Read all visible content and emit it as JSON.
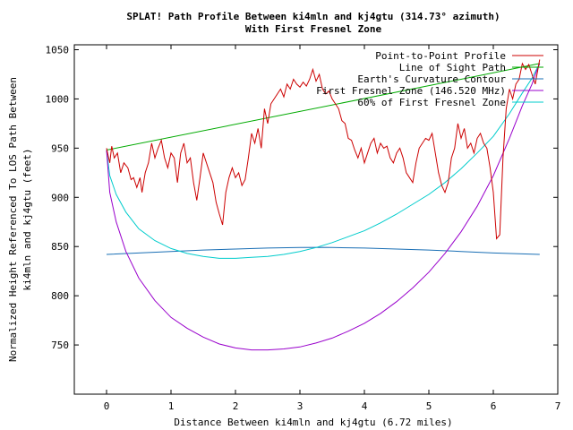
{
  "chart_data": {
    "type": "line",
    "title": "SPLAT! Path Profile Between ki4mln and kj4gtu (314.73° azimuth)",
    "subtitle": "With First Fresnel Zone",
    "xlabel": "Distance Between ki4mln and kj4gtu (6.72 miles)",
    "ylabel": [
      "Normalized Height Referenced To LOS Path Between",
      "ki4mln and kj4gtu (feet)"
    ],
    "xlim": [
      -0.5,
      7
    ],
    "ylim": [
      700,
      1055
    ],
    "xticks": [
      0,
      1,
      2,
      3,
      4,
      5,
      6,
      7
    ],
    "yticks": [
      750,
      800,
      850,
      900,
      950,
      1000,
      1050
    ],
    "grid": false,
    "legend_position": "top-right",
    "series": [
      {
        "name": "Point-to-Point Profile",
        "color": "#cc0000",
        "x": [
          0,
          0.05,
          0.08,
          0.12,
          0.17,
          0.22,
          0.27,
          0.33,
          0.38,
          0.42,
          0.47,
          0.52,
          0.55,
          0.6,
          0.65,
          0.7,
          0.75,
          0.8,
          0.85,
          0.9,
          0.95,
          1.0,
          1.05,
          1.1,
          1.15,
          1.2,
          1.25,
          1.3,
          1.35,
          1.4,
          1.45,
          1.5,
          1.55,
          1.6,
          1.65,
          1.7,
          1.75,
          1.8,
          1.85,
          1.9,
          1.95,
          2.0,
          2.05,
          2.1,
          2.15,
          2.2,
          2.25,
          2.3,
          2.35,
          2.4,
          2.45,
          2.5,
          2.55,
          2.6,
          2.65,
          2.7,
          2.75,
          2.8,
          2.85,
          2.9,
          2.95,
          3.0,
          3.05,
          3.1,
          3.15,
          3.2,
          3.25,
          3.3,
          3.35,
          3.4,
          3.45,
          3.5,
          3.55,
          3.6,
          3.65,
          3.7,
          3.75,
          3.8,
          3.85,
          3.9,
          3.95,
          4.0,
          4.05,
          4.1,
          4.15,
          4.2,
          4.25,
          4.3,
          4.35,
          4.4,
          4.45,
          4.5,
          4.55,
          4.6,
          4.65,
          4.7,
          4.75,
          4.8,
          4.85,
          4.9,
          4.95,
          5.0,
          5.05,
          5.1,
          5.15,
          5.2,
          5.25,
          5.3,
          5.35,
          5.4,
          5.45,
          5.5,
          5.55,
          5.6,
          5.65,
          5.7,
          5.75,
          5.8,
          5.85,
          5.9,
          5.95,
          6.0,
          6.05,
          6.1,
          6.15,
          6.2,
          6.25,
          6.3,
          6.35,
          6.4,
          6.45,
          6.5,
          6.55,
          6.6,
          6.65,
          6.72
        ],
        "values": [
          950,
          935,
          952,
          940,
          945,
          925,
          935,
          930,
          918,
          920,
          910,
          920,
          905,
          925,
          935,
          955,
          940,
          950,
          958,
          940,
          930,
          945,
          940,
          915,
          945,
          955,
          935,
          940,
          915,
          897,
          920,
          945,
          935,
          925,
          915,
          895,
          883,
          872,
          905,
          920,
          930,
          920,
          925,
          912,
          918,
          940,
          965,
          955,
          970,
          950,
          990,
          975,
          995,
          1000,
          1005,
          1010,
          1002,
          1015,
          1010,
          1020,
          1015,
          1012,
          1017,
          1013,
          1020,
          1030,
          1018,
          1025,
          1010,
          1005,
          1008,
          1000,
          995,
          990,
          978,
          975,
          960,
          958,
          948,
          940,
          950,
          935,
          945,
          955,
          960,
          945,
          955,
          950,
          952,
          940,
          935,
          945,
          950,
          940,
          925,
          920,
          915,
          935,
          950,
          955,
          960,
          958,
          965,
          945,
          925,
          912,
          905,
          915,
          940,
          950,
          975,
          960,
          970,
          950,
          955,
          945,
          960,
          965,
          955,
          950,
          930,
          905,
          858,
          862,
          940,
          990,
          1010,
          1000,
          1015,
          1020,
          1036,
          1030,
          1035,
          1025,
          1015,
          1040
        ]
      },
      {
        "name": "Line of Sight Path",
        "color": "#00aa00",
        "x": [
          0,
          6.72
        ],
        "values": [
          948,
          1036
        ]
      },
      {
        "name": "Earth's Curvature Contour",
        "color": "#1a6fb5",
        "x": [
          0,
          0.5,
          1.0,
          1.5,
          2.0,
          2.5,
          3.0,
          3.36,
          3.5,
          4.0,
          4.5,
          5.0,
          5.5,
          6.0,
          6.5,
          6.72
        ],
        "values": [
          842,
          843.5,
          845,
          846.5,
          847.5,
          848.5,
          849,
          849.2,
          849,
          848.5,
          847.5,
          846.5,
          845,
          843.5,
          842.5,
          842
        ]
      },
      {
        "name": "First Fresnel Zone (146.520 MHz)",
        "color": "#9900cc",
        "x": [
          0,
          0.05,
          0.15,
          0.3,
          0.5,
          0.75,
          1.0,
          1.25,
          1.5,
          1.75,
          2.0,
          2.25,
          2.5,
          2.75,
          3.0,
          3.25,
          3.5,
          3.75,
          4.0,
          4.25,
          4.5,
          4.75,
          5.0,
          5.25,
          5.5,
          5.75,
          6.0,
          6.25,
          6.45,
          6.6,
          6.67,
          6.72
        ],
        "values": [
          948,
          905,
          875,
          845,
          818,
          795,
          778,
          767,
          758,
          751,
          747,
          745,
          745,
          746,
          748,
          752,
          757,
          764,
          772,
          782,
          794,
          808,
          824,
          843,
          865,
          891,
          922,
          960,
          993,
          1015,
          1028,
          1036
        ]
      },
      {
        "name": "60% of First Fresnel Zone",
        "color": "#00cccc",
        "x": [
          0,
          0.05,
          0.15,
          0.3,
          0.5,
          0.75,
          1.0,
          1.25,
          1.5,
          1.75,
          2.0,
          2.25,
          2.5,
          2.75,
          3.0,
          3.25,
          3.5,
          3.75,
          4.0,
          4.25,
          4.5,
          4.75,
          5.0,
          5.25,
          5.5,
          5.75,
          6.0,
          6.25,
          6.45,
          6.6,
          6.67,
          6.72
        ],
        "values": [
          948,
          922,
          903,
          885,
          868,
          856,
          848,
          843,
          840,
          838,
          838,
          839,
          840,
          842,
          845,
          849,
          854,
          860,
          866,
          874,
          883,
          893,
          903,
          915,
          929,
          945,
          962,
          985,
          1006,
          1021,
          1030,
          1036
        ]
      }
    ]
  }
}
